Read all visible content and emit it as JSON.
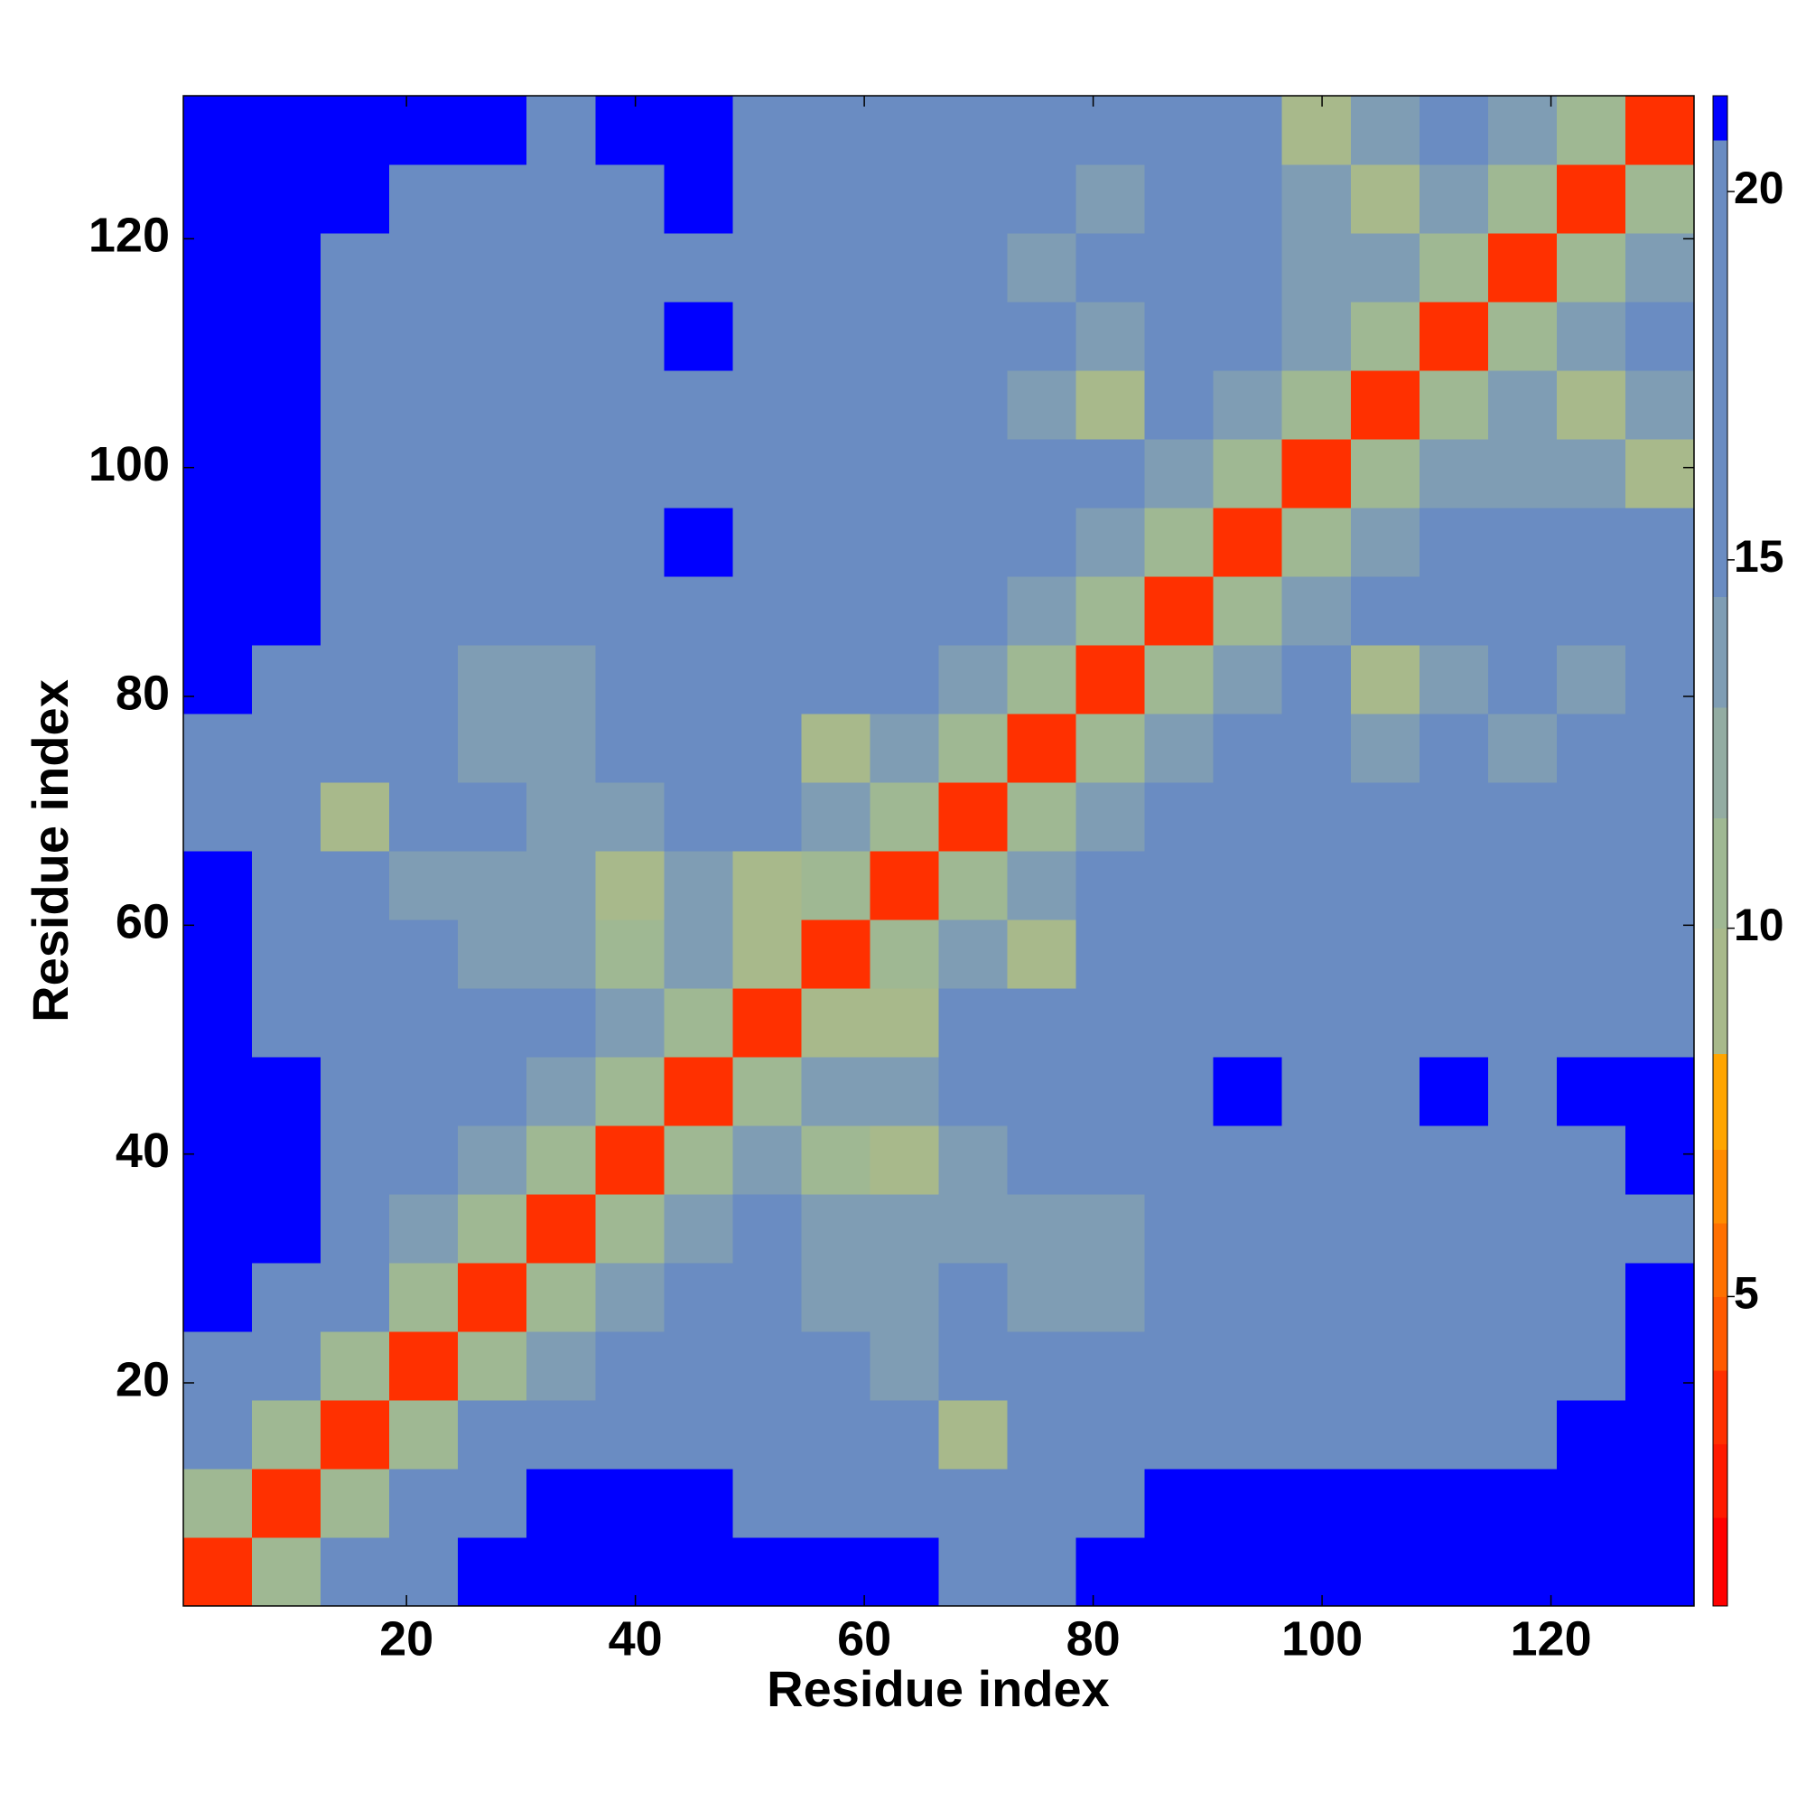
{
  "chart_data": {
    "type": "heatmap",
    "xlabel": "Residue index",
    "ylabel": "Residue index",
    "x": [
      3.5,
      9.5,
      15.5,
      21.5,
      27.5,
      33.5,
      39.5,
      45.5,
      51.5,
      57.5,
      63.5,
      69.5,
      75.5,
      81.5,
      87.5,
      93.5,
      99.5,
      105.5,
      111.5,
      117.5,
      123.5,
      129.5
    ],
    "y": [
      3.5,
      9.5,
      15.5,
      21.5,
      27.5,
      33.5,
      39.5,
      45.5,
      51.5,
      57.5,
      63.5,
      69.5,
      75.5,
      81.5,
      87.5,
      93.5,
      99.5,
      105.5,
      111.5,
      117.5,
      123.5,
      129.5
    ],
    "z": [
      [
        3,
        10,
        17,
        20,
        22,
        22,
        22,
        22,
        22,
        22,
        22,
        20,
        20,
        22,
        22,
        22,
        22,
        22,
        22,
        22,
        22,
        22
      ],
      [
        10,
        3,
        10,
        17,
        20,
        22,
        22,
        22,
        20,
        20,
        17,
        17,
        17,
        20,
        22,
        22,
        22,
        22,
        22,
        22,
        22,
        22
      ],
      [
        17,
        10,
        3,
        10,
        17,
        20,
        17,
        17,
        17,
        17,
        17,
        9,
        17,
        17,
        20,
        20,
        20,
        20,
        20,
        20,
        22,
        22
      ],
      [
        20,
        17,
        10,
        3,
        10,
        13,
        17,
        17,
        17,
        17,
        13,
        17,
        17,
        17,
        17,
        20,
        20,
        20,
        20,
        20,
        20,
        22
      ],
      [
        22,
        20,
        17,
        10,
        3,
        10,
        13,
        17,
        17,
        13,
        13,
        17,
        13,
        13,
        17,
        20,
        20,
        20,
        20,
        20,
        20,
        22
      ],
      [
        22,
        22,
        20,
        13,
        10,
        3,
        10,
        13,
        17,
        13,
        13,
        13,
        13,
        13,
        17,
        17,
        20,
        20,
        20,
        20,
        20,
        20
      ],
      [
        22,
        22,
        17,
        17,
        13,
        10,
        3,
        10,
        13,
        10,
        9,
        13,
        17,
        17,
        17,
        20,
        20,
        20,
        20,
        20,
        20,
        22
      ],
      [
        22,
        22,
        17,
        17,
        17,
        13,
        10,
        3,
        10,
        13,
        13,
        17,
        17,
        17,
        20,
        22,
        20,
        20,
        22,
        20,
        22,
        22
      ],
      [
        22,
        20,
        17,
        17,
        17,
        17,
        13,
        10,
        3,
        9,
        9,
        17,
        17,
        17,
        17,
        17,
        20,
        20,
        20,
        20,
        20,
        20
      ],
      [
        22,
        20,
        17,
        17,
        13,
        13,
        10,
        13,
        9,
        3,
        10,
        13,
        9,
        17,
        17,
        17,
        20,
        20,
        20,
        20,
        20,
        20
      ],
      [
        22,
        17,
        17,
        13,
        13,
        13,
        9,
        13,
        9,
        10,
        3,
        10,
        13,
        17,
        17,
        17,
        20,
        17,
        17,
        20,
        20,
        20
      ],
      [
        20,
        17,
        9,
        17,
        17,
        13,
        13,
        17,
        17,
        13,
        10,
        3,
        10,
        13,
        17,
        17,
        17,
        17,
        17,
        17,
        17,
        20
      ],
      [
        20,
        17,
        17,
        17,
        13,
        13,
        17,
        17,
        17,
        9,
        13,
        10,
        3,
        10,
        13,
        17,
        17,
        13,
        17,
        13,
        17,
        17
      ],
      [
        22,
        20,
        17,
        17,
        13,
        13,
        17,
        17,
        17,
        17,
        17,
        13,
        10,
        3,
        10,
        13,
        17,
        9,
        13,
        17,
        13,
        17
      ],
      [
        22,
        22,
        20,
        17,
        17,
        17,
        17,
        20,
        17,
        17,
        17,
        17,
        13,
        10,
        3,
        10,
        13,
        17,
        17,
        20,
        17,
        17
      ],
      [
        22,
        22,
        20,
        20,
        20,
        17,
        20,
        22,
        17,
        17,
        17,
        17,
        17,
        13,
        10,
        3,
        10,
        13,
        17,
        20,
        20,
        17
      ],
      [
        22,
        22,
        20,
        20,
        20,
        20,
        20,
        20,
        20,
        20,
        20,
        17,
        17,
        17,
        13,
        10,
        3,
        10,
        13,
        13,
        13,
        9
      ],
      [
        22,
        22,
        20,
        20,
        20,
        20,
        20,
        20,
        20,
        20,
        17,
        17,
        13,
        9,
        17,
        13,
        10,
        3,
        10,
        13,
        9,
        13
      ],
      [
        22,
        22,
        20,
        20,
        20,
        20,
        20,
        22,
        20,
        20,
        17,
        17,
        17,
        13,
        17,
        17,
        13,
        10,
        3,
        10,
        13,
        17
      ],
      [
        22,
        22,
        20,
        20,
        20,
        20,
        20,
        20,
        20,
        20,
        20,
        17,
        13,
        17,
        20,
        20,
        13,
        13,
        10,
        3,
        10,
        13
      ],
      [
        22,
        22,
        22,
        20,
        20,
        20,
        20,
        22,
        20,
        20,
        20,
        17,
        17,
        13,
        17,
        20,
        13,
        9,
        13,
        10,
        3,
        10
      ],
      [
        22,
        22,
        22,
        22,
        22,
        20,
        22,
        22,
        20,
        20,
        20,
        20,
        17,
        17,
        17,
        17,
        9,
        13,
        17,
        13,
        10,
        3
      ]
    ],
    "xlim": [
      0.5,
      132.5
    ],
    "ylim": [
      0.5,
      132.5
    ],
    "xticks": [
      20,
      40,
      60,
      80,
      100,
      120
    ],
    "yticks": [
      20,
      40,
      60,
      80,
      100,
      120
    ],
    "clim": [
      0.8,
      21.3
    ],
    "cticks": [
      5,
      10,
      15,
      20
    ],
    "colorscale": {
      "bounds": [
        0.8,
        2,
        3,
        4,
        5,
        6,
        7,
        8.3,
        10,
        11.5,
        13,
        14.5,
        20.7,
        21.3
      ],
      "colors": [
        "#ff0000",
        "#ff1a00",
        "#ff3000",
        "#ff5a00",
        "#ff7000",
        "#ff8c00",
        "#ffa500",
        "#a8b98b",
        "#9fb893",
        "#93aca2",
        "#7f9db4",
        "#6a8cc2",
        "#0000ff"
      ]
    }
  }
}
